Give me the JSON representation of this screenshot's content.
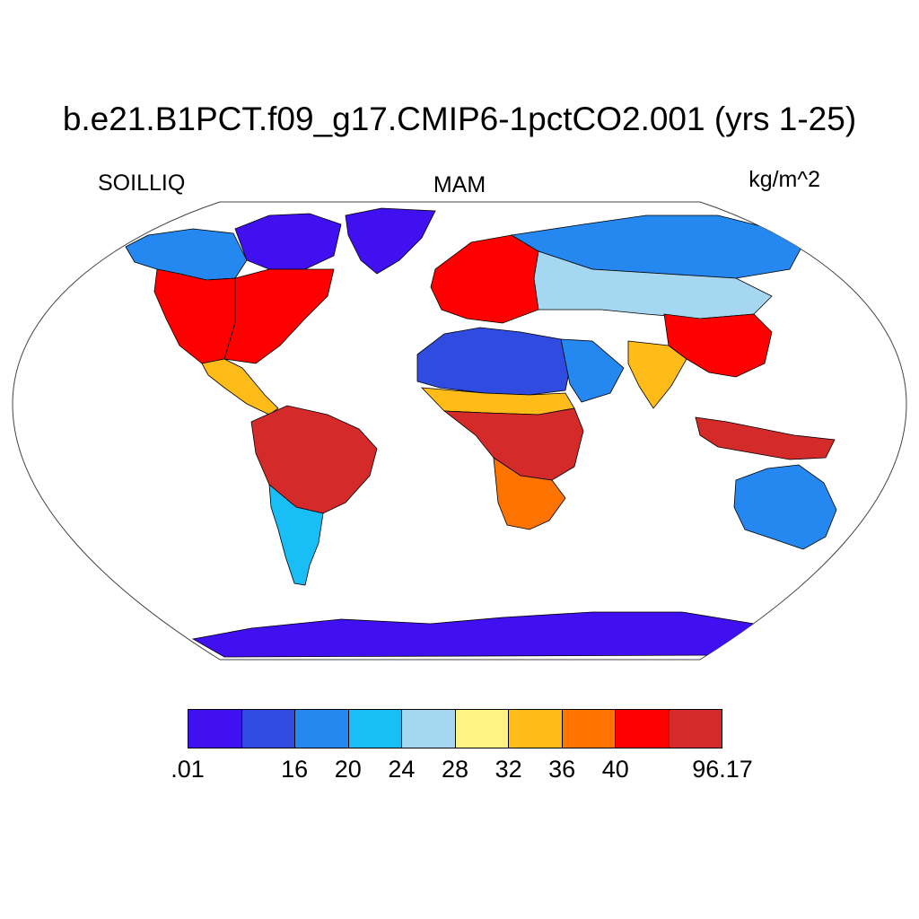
{
  "title": "b.e21.B1PCT.f09_g17.CMIP6-1pctCO2.001 (yrs 1-25)",
  "variable": "SOILLIQ",
  "season": "MAM",
  "units": "kg/m^2",
  "colorbar": {
    "colors": [
      "#4010f0",
      "#2f4be0",
      "#2488f0",
      "#18bef5",
      "#a5d8f0",
      "#fff384",
      "#ffbb17",
      "#ff7300",
      "#ff0000",
      "#d42a2a"
    ],
    "labels": [
      {
        "text": ".01",
        "boundary": 0
      },
      {
        "text": "16",
        "boundary": 2
      },
      {
        "text": "20",
        "boundary": 3
      },
      {
        "text": "24",
        "boundary": 4
      },
      {
        "text": "28",
        "boundary": 5
      },
      {
        "text": "32",
        "boundary": 6
      },
      {
        "text": "36",
        "boundary": 7
      },
      {
        "text": "40",
        "boundary": 8
      },
      {
        "text": "96.17",
        "boundary": 10
      }
    ]
  },
  "map": {
    "projection": "robinson",
    "ocean_color": "#ffffff",
    "regions": [
      {
        "name": "greenland",
        "color": "#4010f0"
      },
      {
        "name": "canadian-arctic",
        "color": "#4010f0"
      },
      {
        "name": "alaska-canada",
        "color": "#2488f0"
      },
      {
        "name": "north-america-west",
        "color": "#ff0000"
      },
      {
        "name": "north-america-east",
        "color": "#ff0000"
      },
      {
        "name": "central-america",
        "color": "#ffbb17"
      },
      {
        "name": "south-america-amazon",
        "color": "#d42a2a"
      },
      {
        "name": "south-america-south",
        "color": "#18bef5"
      },
      {
        "name": "europe",
        "color": "#ff0000"
      },
      {
        "name": "russia-north",
        "color": "#2488f0"
      },
      {
        "name": "central-asia",
        "color": "#a5d8f0"
      },
      {
        "name": "sahara",
        "color": "#2f4be0"
      },
      {
        "name": "arabia",
        "color": "#2488f0"
      },
      {
        "name": "sahel",
        "color": "#ffbb17"
      },
      {
        "name": "central-africa",
        "color": "#d42a2a"
      },
      {
        "name": "southern-africa",
        "color": "#ff7300"
      },
      {
        "name": "india",
        "color": "#ffbb17"
      },
      {
        "name": "china",
        "color": "#ff0000"
      },
      {
        "name": "southeast-asia",
        "color": "#d42a2a"
      },
      {
        "name": "australia",
        "color": "#2488f0"
      },
      {
        "name": "antarctica",
        "color": "#4010f0"
      }
    ]
  }
}
